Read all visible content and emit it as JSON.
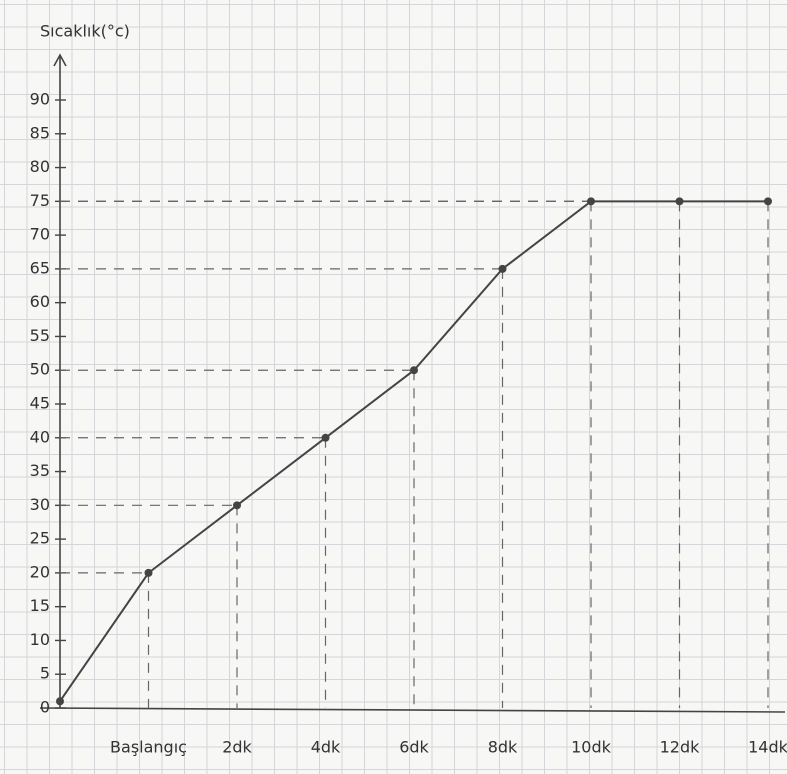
{
  "chart_data": {
    "type": "line",
    "y_label": "Sıcaklık(°c)",
    "categories": [
      null,
      "Başlangıç",
      "2dk",
      "4dk",
      "6dk",
      "8dk",
      "10dk",
      "12dk",
      "14dk"
    ],
    "values": [
      1,
      20,
      30,
      40,
      50,
      65,
      75,
      75,
      75
    ],
    "color": "#444444",
    "ylim": [
      0,
      90
    ],
    "yticks": [
      0,
      5,
      10,
      15,
      20,
      25,
      30,
      35,
      40,
      45,
      50,
      55,
      60,
      65,
      70,
      75,
      80,
      85,
      90
    ]
  }
}
